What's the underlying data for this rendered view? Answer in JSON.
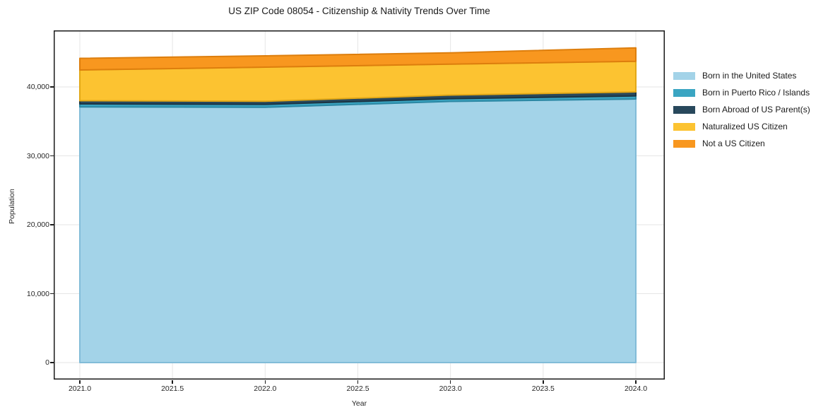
{
  "chart_data": {
    "type": "area",
    "title": "US ZIP Code 08054 - Citizenship & Nativity Trends Over Time",
    "xlabel": "Year",
    "ylabel": "Population",
    "stacked": true,
    "grid": true,
    "legend_position": "center right outside",
    "x": [
      2021,
      2022,
      2023,
      2024
    ],
    "x_tick_values": [
      2021.0,
      2021.5,
      2022.0,
      2022.5,
      2023.0,
      2023.5,
      2024.0
    ],
    "x_tick_labels": [
      "2021.0",
      "2021.5",
      "2022.0",
      "2022.5",
      "2023.0",
      "2023.5",
      "2024.0"
    ],
    "y_tick_values": [
      0,
      10000,
      20000,
      30000,
      40000
    ],
    "y_tick_labels": [
      "0",
      "10,000",
      "20,000",
      "30,000",
      "40,000"
    ],
    "xlim": [
      2020.86,
      2024.15
    ],
    "ylim": [
      -2460,
      48200
    ],
    "series": [
      {
        "name": "Born in the United States",
        "color": "#a3d3e8",
        "edge_color": "#82bcd8",
        "values": [
          37100,
          37050,
          37900,
          38250
        ]
      },
      {
        "name": "Born in Puerto Rico / Islands",
        "color": "#3aa5c2",
        "edge_color": "#2c88a4",
        "values": [
          440,
          420,
          400,
          450
        ]
      },
      {
        "name": "Born Abroad of US Parent(s)",
        "color": "#28485c",
        "edge_color": "#1c3544",
        "values": [
          460,
          450,
          520,
          580
        ]
      },
      {
        "name": "Naturalized US Citizen",
        "color": "#fcc331",
        "edge_color": "#e2a817",
        "values": [
          4460,
          4950,
          4490,
          4440
        ]
      },
      {
        "name": "Not a US Citizen",
        "color": "#f8971f",
        "edge_color": "#dd7e0d",
        "values": [
          1690,
          1640,
          1640,
          1950
        ]
      }
    ],
    "grid_color": "#e6e6e6",
    "spine_color": "#1a1a1a"
  }
}
